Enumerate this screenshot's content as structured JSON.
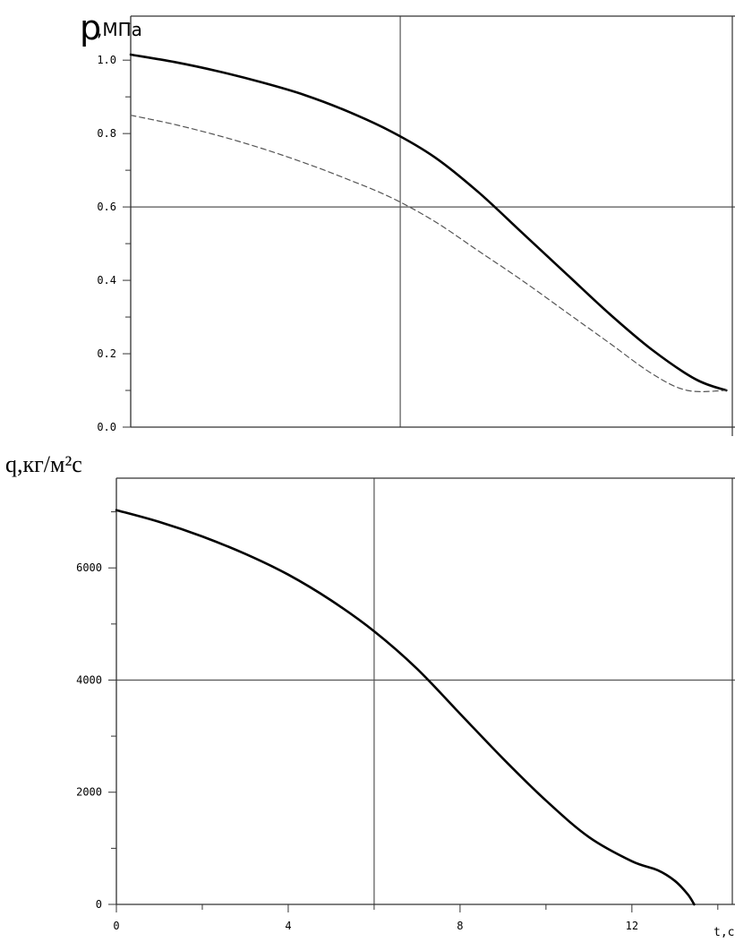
{
  "chart_data": [
    {
      "type": "line",
      "ylabel_symbol": "p",
      "ylabel_unit": ",МПа",
      "xlim": [
        0,
        13.9
      ],
      "ylim": [
        0,
        1.12
      ],
      "yticks": [
        {
          "value": 0.0,
          "label": "0.0"
        },
        {
          "value": 0.2,
          "label": "0.2"
        },
        {
          "value": 0.4,
          "label": "0.4"
        },
        {
          "value": 0.6,
          "label": "0.6"
        },
        {
          "value": 0.8,
          "label": "0.8"
        },
        {
          "value": 1.0,
          "label": "1.0"
        }
      ],
      "minor_ytick_step": 0.1,
      "reference_lines": {
        "x": 6.2,
        "y": 0.6
      },
      "series": [
        {
          "style": "solid",
          "color": "#000000",
          "x": [
            0,
            1,
            2,
            3,
            4,
            5,
            6,
            7,
            8,
            9,
            10,
            11,
            12,
            13,
            13.7
          ],
          "y": [
            1.015,
            0.995,
            0.97,
            0.94,
            0.905,
            0.86,
            0.805,
            0.735,
            0.64,
            0.53,
            0.42,
            0.31,
            0.21,
            0.13,
            0.1
          ]
        },
        {
          "style": "dashed",
          "color": "#555555",
          "x": [
            0,
            1,
            2,
            3,
            4,
            5,
            6,
            7,
            8,
            9,
            10,
            11,
            12,
            12.8,
            13.7
          ],
          "y": [
            0.85,
            0.825,
            0.795,
            0.76,
            0.72,
            0.675,
            0.625,
            0.56,
            0.48,
            0.4,
            0.315,
            0.23,
            0.145,
            0.1,
            0.1
          ]
        }
      ]
    },
    {
      "type": "line",
      "ylabel": "q,кг/м²с",
      "xlabel": "t,c",
      "xlim": [
        0,
        14.4
      ],
      "ylim": [
        0,
        7600
      ],
      "xticks": [
        {
          "value": 0,
          "label": "0"
        },
        {
          "value": 4,
          "label": "4"
        },
        {
          "value": 8,
          "label": "8"
        },
        {
          "value": 12,
          "label": "12"
        }
      ],
      "minor_xtick_step": 2,
      "yticks": [
        {
          "value": 0,
          "label": "0"
        },
        {
          "value": 2000,
          "label": "2000"
        },
        {
          "value": 4000,
          "label": "4000"
        },
        {
          "value": 6000,
          "label": "6000"
        }
      ],
      "minor_ytick_step": 1000,
      "reference_lines": {
        "x": 6,
        "y": 4000
      },
      "series": [
        {
          "style": "solid",
          "color": "#000000",
          "x": [
            0,
            1,
            2,
            3,
            4,
            5,
            6,
            7,
            8,
            9,
            10,
            11,
            12,
            12.6,
            13,
            13.3,
            13.45
          ],
          "y": [
            7030,
            6820,
            6560,
            6250,
            5880,
            5420,
            4870,
            4200,
            3400,
            2600,
            1850,
            1200,
            770,
            610,
            420,
            180,
            0
          ]
        }
      ]
    }
  ]
}
